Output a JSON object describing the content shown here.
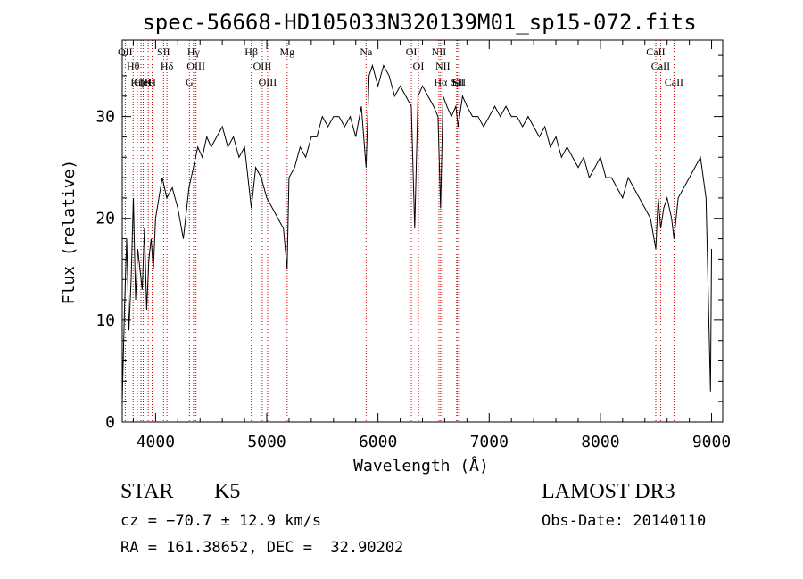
{
  "chart_data": {
    "type": "line",
    "title": "spec-56668-HD105033N320139M01_sp15-072.fits",
    "xlabel": "Wavelength (Å)",
    "ylabel": "Flux (relative)",
    "xlim": [
      3700,
      9100
    ],
    "ylim": [
      0,
      37.5
    ],
    "x_ticks": [
      4000,
      5000,
      6000,
      7000,
      8000,
      9000
    ],
    "y_ticks": [
      0,
      10,
      20,
      30
    ],
    "grid": false,
    "series": [
      {
        "color": "#000000",
        "x": [
          3700,
          3720,
          3740,
          3760,
          3780,
          3800,
          3820,
          3840,
          3860,
          3880,
          3900,
          3920,
          3940,
          3960,
          3980,
          4000,
          4030,
          4060,
          4100,
          4150,
          4200,
          4250,
          4300,
          4340,
          4380,
          4420,
          4460,
          4500,
          4550,
          4600,
          4650,
          4700,
          4750,
          4800,
          4861,
          4900,
          4950,
          5000,
          5050,
          5100,
          5150,
          5183,
          5200,
          5250,
          5300,
          5350,
          5400,
          5450,
          5500,
          5550,
          5600,
          5650,
          5700,
          5750,
          5800,
          5850,
          5893,
          5920,
          5950,
          6000,
          6050,
          6100,
          6150,
          6200,
          6250,
          6300,
          6330,
          6360,
          6400,
          6450,
          6500,
          6540,
          6563,
          6585,
          6620,
          6660,
          6700,
          6720,
          6760,
          6800,
          6850,
          6900,
          6950,
          7000,
          7050,
          7100,
          7150,
          7200,
          7250,
          7300,
          7350,
          7400,
          7450,
          7500,
          7550,
          7600,
          7650,
          7700,
          7750,
          7800,
          7850,
          7900,
          7950,
          8000,
          8050,
          8100,
          8150,
          8200,
          8250,
          8300,
          8350,
          8400,
          8450,
          8498,
          8520,
          8542,
          8570,
          8600,
          8640,
          8662,
          8700,
          8750,
          8800,
          8850,
          8900,
          8950,
          8990,
          9000
        ],
        "y": [
          2,
          11,
          18,
          9,
          14,
          22,
          12,
          17,
          15,
          13,
          19,
          11,
          16,
          18,
          15,
          20,
          22,
          24,
          22,
          23,
          21,
          18,
          23,
          25,
          27,
          26,
          28,
          27,
          28,
          29,
          27,
          28,
          26,
          27,
          21,
          25,
          24,
          22,
          21,
          20,
          19,
          15,
          24,
          25,
          27,
          26,
          28,
          28,
          30,
          29,
          30,
          30,
          29,
          30,
          28,
          31,
          25,
          34,
          35,
          33,
          35,
          34,
          32,
          33,
          32,
          31,
          19,
          32,
          33,
          32,
          31,
          30,
          21,
          32,
          31,
          30,
          31,
          29,
          32,
          31,
          30,
          30,
          29,
          30,
          31,
          30,
          31,
          30,
          30,
          29,
          30,
          29,
          28,
          29,
          27,
          28,
          26,
          27,
          26,
          25,
          26,
          24,
          25,
          26,
          24,
          24,
          23,
          22,
          24,
          23,
          22,
          21,
          20,
          17,
          22,
          19,
          21,
          22,
          20,
          18,
          22,
          23,
          24,
          25,
          26,
          22,
          3,
          17
        ]
      }
    ],
    "lines": [
      {
        "x": 3727,
        "label": "OII"
      },
      {
        "x": 3798,
        "label": "Hθ"
      },
      {
        "x": 3835,
        "label": "Hη"
      },
      {
        "x": 3869,
        "label": "CII"
      },
      {
        "x": 3889,
        "label": "HeI"
      },
      {
        "x": 3934,
        "label": "K"
      },
      {
        "x": 3969,
        "label": "H"
      },
      {
        "x": 4072,
        "label": "SII"
      },
      {
        "x": 4102,
        "label": "Hδ"
      },
      {
        "x": 4304,
        "label": "G"
      },
      {
        "x": 4341,
        "label": "Hγ"
      },
      {
        "x": 4363,
        "label": "OIII"
      },
      {
        "x": 4861,
        "label": "Hβ"
      },
      {
        "x": 4959,
        "label": "OIII"
      },
      {
        "x": 5007,
        "label": "OIII"
      },
      {
        "x": 5183,
        "label": "Mg"
      },
      {
        "x": 5893,
        "label": "Na"
      },
      {
        "x": 6300,
        "label": "OI"
      },
      {
        "x": 6364,
        "label": "OI"
      },
      {
        "x": 6548,
        "label": "NII"
      },
      {
        "x": 6563,
        "label": "Hα"
      },
      {
        "x": 6583,
        "label": "NII"
      },
      {
        "x": 6708,
        "label": "Li"
      },
      {
        "x": 6716,
        "label": "SII"
      },
      {
        "x": 6731,
        "label": "SII"
      },
      {
        "x": 8498,
        "label": "CaII"
      },
      {
        "x": 8542,
        "label": "CaII"
      },
      {
        "x": 8662,
        "label": "CaII"
      }
    ]
  },
  "info": {
    "class": "STAR",
    "subclass": "K5",
    "survey": "LAMOST DR3",
    "cz": "cz = −70.7 ± 12.9 km/s",
    "obs_date": "Obs-Date: 20140110",
    "coords": "RA = 161.38652, DEC =  32.90202"
  },
  "colors": {
    "spectrum": "#000000",
    "line_markers": "#cc0000",
    "background": "#ffffff"
  }
}
